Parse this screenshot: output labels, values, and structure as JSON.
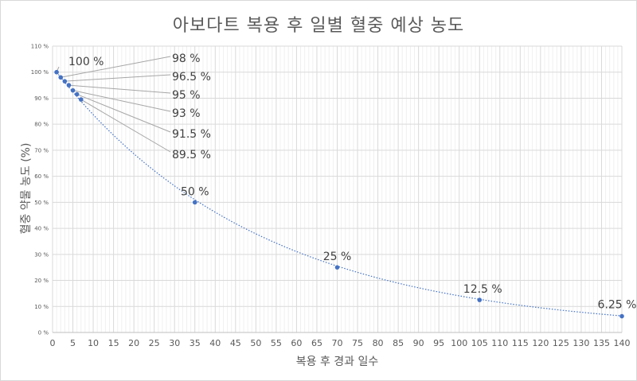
{
  "chart_data": {
    "type": "scatter",
    "title": "아보다트 복용 후 일별 혈중 예상 농도",
    "xlabel": "복용 후 경과 일수",
    "ylabel": "혈중 약물 농도 (%)",
    "xlim": [
      0,
      140
    ],
    "ylim": [
      0,
      110
    ],
    "x_ticks": [
      0,
      5,
      10,
      15,
      20,
      25,
      30,
      35,
      40,
      45,
      50,
      55,
      60,
      65,
      70,
      75,
      80,
      85,
      90,
      95,
      100,
      105,
      110,
      115,
      120,
      125,
      130,
      135,
      140
    ],
    "y_ticks": [
      0,
      10,
      20,
      30,
      40,
      50,
      60,
      70,
      80,
      90,
      100,
      110
    ],
    "y_tick_labels": [
      "0 %",
      "10 %",
      "20 %",
      "30 %",
      "40 %",
      "50 %",
      "60 %",
      "70 %",
      "80 %",
      "90 %",
      "100 %",
      "110 %"
    ],
    "grid": true,
    "trendline": "exponential dotted",
    "marker_color": "#4472c4",
    "series": [
      {
        "x": [
          1,
          2,
          3,
          4,
          5,
          6,
          7,
          35,
          70,
          105,
          140
        ],
        "y": [
          100,
          98,
          96.5,
          95,
          93,
          91.5,
          89.5,
          50,
          25,
          12.5,
          6.25
        ],
        "labels": [
          "100 %",
          "98 %",
          "96.5 %",
          "95 %",
          "93 %",
          "91.5 %",
          "89.5 %",
          "50 %",
          "25 %",
          "12.5 %",
          "6.25 %"
        ]
      }
    ]
  }
}
